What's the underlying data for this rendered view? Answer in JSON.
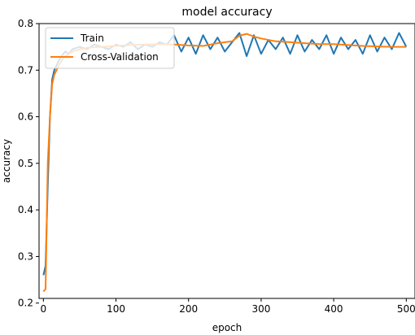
{
  "chart_data": {
    "type": "line",
    "title": "model accuracy",
    "xlabel": "epoch",
    "ylabel": "accuracy",
    "xlim": [
      -6,
      512
    ],
    "ylim": [
      0.21,
      0.8
    ],
    "x_ticks": [
      0,
      100,
      200,
      300,
      400,
      500
    ],
    "y_ticks": [
      0.2,
      0.3,
      0.4,
      0.5,
      0.6,
      0.7,
      0.8
    ],
    "grid": false,
    "legend_position": "upper-left",
    "series": [
      {
        "name": "Train",
        "color": "#1f77b4",
        "x": [
          0,
          3,
          6,
          9,
          12,
          15,
          18,
          21,
          25,
          30,
          35,
          40,
          50,
          60,
          70,
          80,
          90,
          100,
          110,
          120,
          130,
          140,
          150,
          160,
          170,
          180,
          190,
          200,
          210,
          220,
          230,
          240,
          250,
          260,
          270,
          280,
          290,
          300,
          310,
          320,
          330,
          340,
          350,
          360,
          370,
          380,
          390,
          400,
          410,
          420,
          430,
          440,
          450,
          460,
          470,
          480,
          490,
          500
        ],
        "y": [
          0.26,
          0.28,
          0.45,
          0.6,
          0.68,
          0.7,
          0.71,
          0.72,
          0.73,
          0.74,
          0.735,
          0.745,
          0.75,
          0.745,
          0.755,
          0.75,
          0.745,
          0.755,
          0.75,
          0.76,
          0.745,
          0.755,
          0.75,
          0.76,
          0.755,
          0.775,
          0.74,
          0.77,
          0.735,
          0.775,
          0.745,
          0.77,
          0.74,
          0.76,
          0.78,
          0.73,
          0.775,
          0.735,
          0.765,
          0.745,
          0.77,
          0.735,
          0.775,
          0.74,
          0.765,
          0.745,
          0.775,
          0.735,
          0.77,
          0.745,
          0.765,
          0.735,
          0.775,
          0.74,
          0.77,
          0.745,
          0.78,
          0.75
        ]
      },
      {
        "name": "Cross-Validation",
        "color": "#ff7f0e",
        "x": [
          0,
          3,
          6,
          9,
          12,
          15,
          18,
          21,
          25,
          30,
          35,
          40,
          50,
          60,
          80,
          100,
          120,
          140,
          160,
          180,
          200,
          220,
          240,
          260,
          270,
          280,
          290,
          300,
          320,
          340,
          360,
          380,
          400,
          420,
          440,
          460,
          480,
          500
        ],
        "y": [
          0.225,
          0.23,
          0.5,
          0.6,
          0.67,
          0.69,
          0.7,
          0.71,
          0.72,
          0.73,
          0.735,
          0.74,
          0.745,
          0.748,
          0.75,
          0.752,
          0.754,
          0.755,
          0.756,
          0.755,
          0.753,
          0.752,
          0.758,
          0.762,
          0.774,
          0.778,
          0.772,
          0.768,
          0.762,
          0.76,
          0.758,
          0.756,
          0.756,
          0.754,
          0.752,
          0.751,
          0.75,
          0.75
        ]
      }
    ]
  }
}
